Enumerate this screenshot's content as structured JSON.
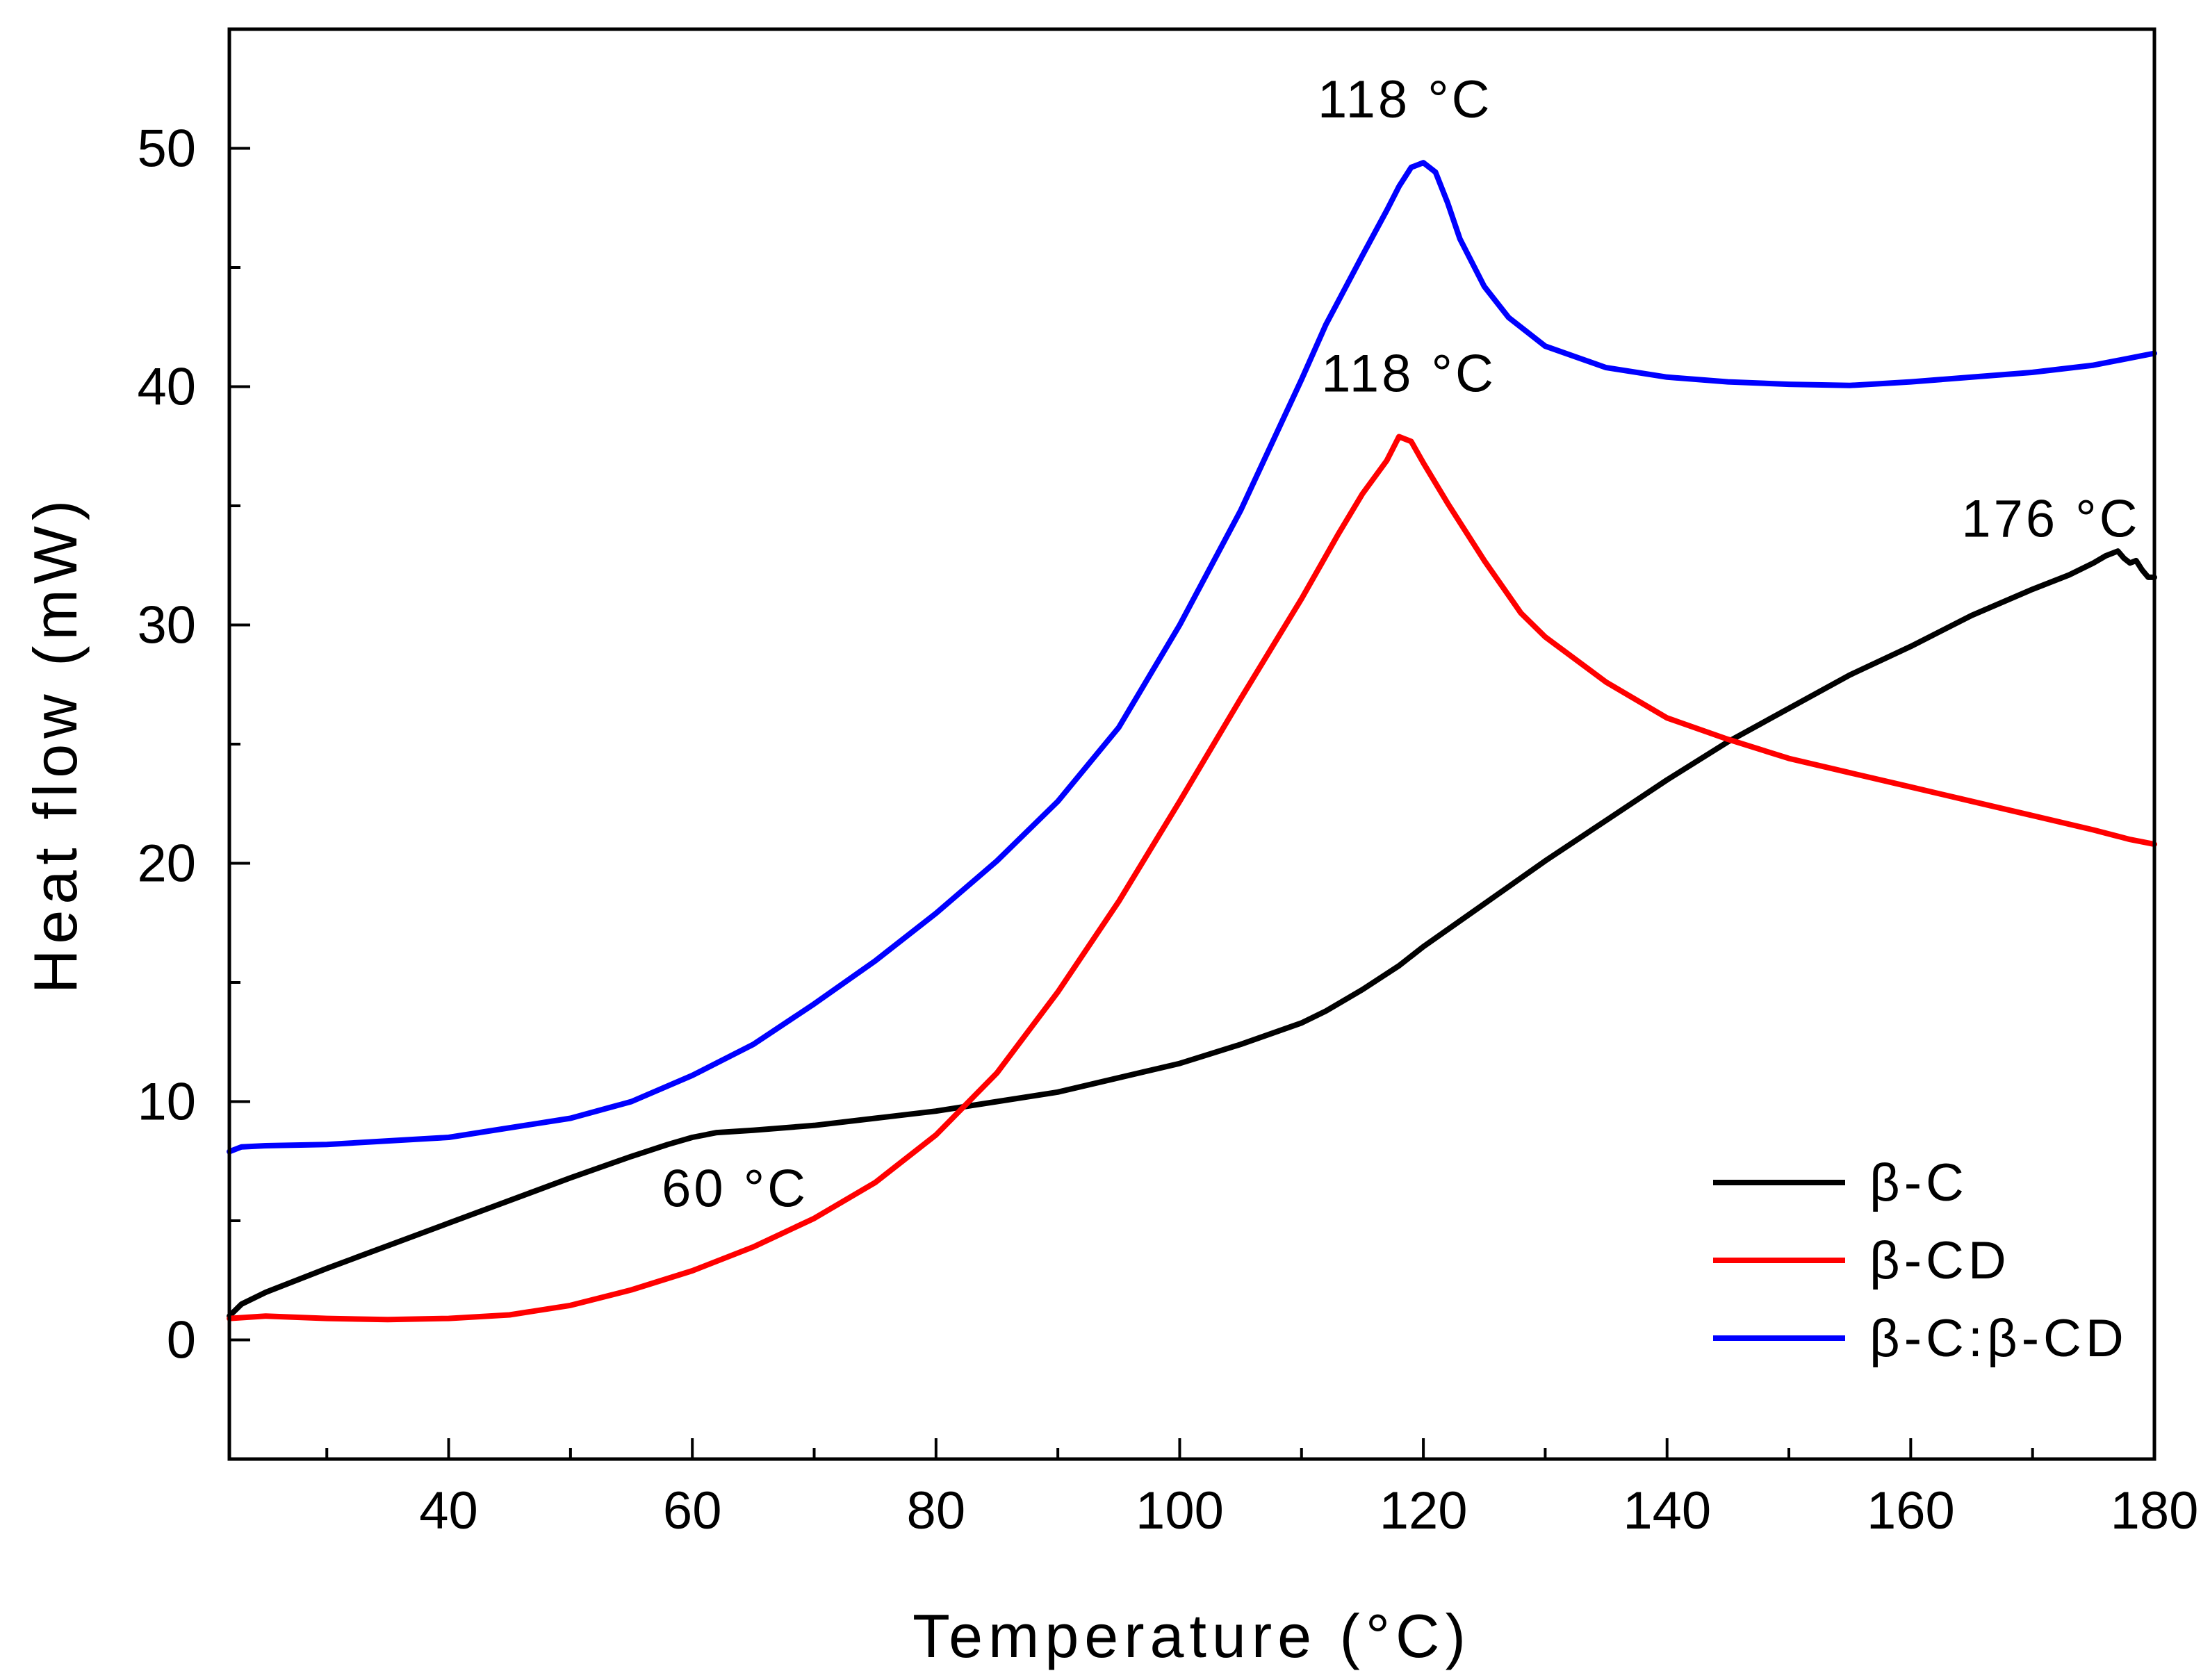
{
  "chart_data": {
    "type": "line",
    "title": "",
    "xlabel": "Temperature (°C)",
    "ylabel": "Heat flow (mW)",
    "xlim": [
      22,
      180
    ],
    "ylim": [
      -5,
      55
    ],
    "xticks": [
      40,
      60,
      80,
      100,
      120,
      140,
      160,
      180
    ],
    "xtick_labels": [
      "40",
      "60",
      "80",
      "100",
      "120",
      "140",
      "160",
      "180"
    ],
    "yticks": [
      0,
      10,
      20,
      30,
      40,
      50
    ],
    "ytick_labels": [
      "0",
      "10",
      "20",
      "30",
      "40",
      "50"
    ],
    "x_minor_step": 10,
    "y_minor_step": 5,
    "grid": false,
    "legend_position": "bottom-right",
    "series": [
      {
        "name": "β-C",
        "color": "#000000",
        "x": [
          22,
          23,
          25,
          30,
          40,
          50,
          55,
          58,
          60,
          62,
          65,
          70,
          75,
          80,
          85,
          90,
          95,
          100,
          105,
          110,
          112,
          115,
          118,
          120,
          125,
          130,
          135,
          140,
          145,
          150,
          155,
          160,
          165,
          170,
          173,
          175,
          176,
          177,
          177.5,
          178,
          178.5,
          179,
          179.5,
          180
        ],
        "y": [
          1.0,
          1.5,
          2.0,
          3.0,
          4.9,
          6.8,
          7.7,
          8.2,
          8.5,
          8.7,
          8.8,
          9.0,
          9.3,
          9.6,
          10.0,
          10.4,
          11.0,
          11.6,
          12.4,
          13.3,
          13.8,
          14.7,
          15.7,
          16.5,
          18.3,
          20.1,
          21.8,
          23.5,
          25.1,
          26.5,
          27.9,
          29.1,
          30.4,
          31.5,
          32.1,
          32.6,
          32.9,
          33.1,
          32.8,
          32.6,
          32.7,
          32.3,
          32.0,
          32.0
        ]
      },
      {
        "name": "β-CD",
        "color": "#ff0000",
        "x": [
          22,
          25,
          30,
          35,
          40,
          45,
          50,
          55,
          60,
          65,
          70,
          75,
          80,
          85,
          90,
          95,
          100,
          105,
          110,
          113,
          115,
          117,
          118,
          119,
          120,
          122,
          125,
          128,
          130,
          135,
          140,
          145,
          150,
          155,
          160,
          165,
          170,
          175,
          178,
          180
        ],
        "y": [
          0.9,
          1.0,
          0.9,
          0.85,
          0.9,
          1.05,
          1.45,
          2.1,
          2.9,
          3.9,
          5.1,
          6.6,
          8.6,
          11.2,
          14.6,
          18.4,
          22.6,
          26.9,
          31.1,
          33.8,
          35.5,
          36.9,
          37.9,
          37.7,
          36.8,
          35.1,
          32.7,
          30.5,
          29.5,
          27.6,
          26.1,
          25.2,
          24.4,
          23.8,
          23.2,
          22.6,
          22.0,
          21.4,
          21.0,
          20.8
        ]
      },
      {
        "name": "β-C:β-CD",
        "color": "#0000ff",
        "x": [
          22,
          23,
          25,
          30,
          40,
          50,
          55,
          60,
          65,
          70,
          75,
          80,
          85,
          90,
          95,
          100,
          105,
          110,
          112,
          115,
          117,
          118,
          119,
          120,
          121,
          122,
          123,
          125,
          127,
          130,
          135,
          140,
          145,
          150,
          155,
          160,
          165,
          170,
          175,
          180
        ],
        "y": [
          7.9,
          8.1,
          8.15,
          8.2,
          8.5,
          9.3,
          10.0,
          11.1,
          12.4,
          14.1,
          15.9,
          17.9,
          20.1,
          22.6,
          25.7,
          30.0,
          34.8,
          40.3,
          42.6,
          45.5,
          47.4,
          48.4,
          49.2,
          49.4,
          49.0,
          47.7,
          46.2,
          44.2,
          42.9,
          41.7,
          40.8,
          40.4,
          40.2,
          40.1,
          40.05,
          40.2,
          40.4,
          40.6,
          40.9,
          41.4
        ]
      }
    ],
    "annotations": [
      {
        "text": "118 °C",
        "x": 118.5,
        "y": 51.3
      },
      {
        "text": "118 °C",
        "x": 118.8,
        "y": 39.8
      },
      {
        "text": "176 °C",
        "x": 171.5,
        "y": 33.7
      },
      {
        "text": "60 °C",
        "x": 63.5,
        "y": 5.6
      }
    ]
  }
}
